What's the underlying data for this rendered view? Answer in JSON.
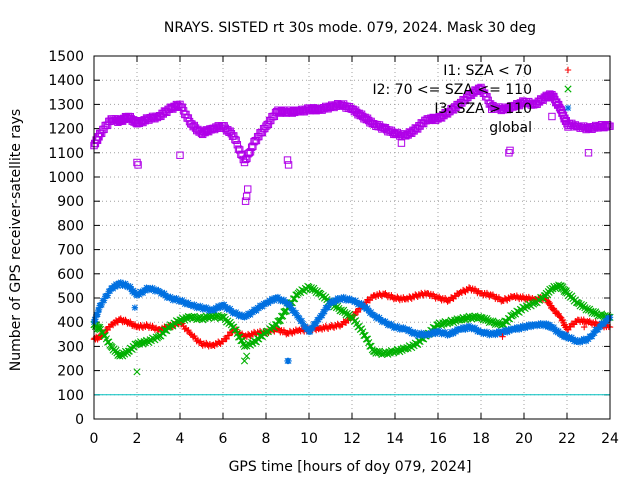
{
  "chart_data": {
    "type": "scatter",
    "title": "NRAYS. SISTED rt 30s mode. 079, 2024. Mask 30 deg",
    "xlabel": "GPS time [hours of doy 079, 2024]",
    "ylabel": "Number of GPS receiver-satellite rays",
    "xlim": [
      0,
      24
    ],
    "ylim": [
      0,
      1500
    ],
    "xticks": [
      0,
      2,
      4,
      6,
      8,
      10,
      12,
      14,
      16,
      18,
      20,
      22,
      24
    ],
    "yticks": [
      0,
      100,
      200,
      300,
      400,
      500,
      600,
      700,
      800,
      900,
      1000,
      1100,
      1200,
      1300,
      1400,
      1500
    ],
    "grid": true,
    "legend_position": "top-right",
    "threshold_line": {
      "y": 100,
      "color": "#00c0c0"
    },
    "series": [
      {
        "name": "I1: SZA < 70",
        "marker": "+",
        "color": "#ff0000",
        "x": [
          0,
          0.3,
          0.8,
          1.2,
          1.6,
          2.0,
          2.5,
          3.0,
          3.5,
          4.0,
          4.5,
          5.0,
          5.5,
          6.0,
          6.5,
          7.0,
          7.5,
          8.0,
          8.5,
          9.0,
          9.5,
          10.0,
          10.5,
          11.0,
          11.5,
          12.0,
          12.5,
          13.0,
          13.5,
          14.0,
          14.5,
          15.0,
          15.5,
          16.0,
          16.5,
          17.0,
          17.5,
          18.0,
          18.5,
          19.0,
          19.5,
          20.0,
          20.5,
          21.0,
          21.3,
          21.7,
          22.0,
          22.5,
          23.0,
          23.5,
          24.0
        ],
        "y": [
          330,
          340,
          390,
          410,
          400,
          380,
          385,
          370,
          380,
          400,
          350,
          310,
          305,
          320,
          370,
          340,
          355,
          360,
          370,
          355,
          365,
          370,
          375,
          380,
          390,
          420,
          470,
          510,
          515,
          500,
          495,
          510,
          520,
          500,
          490,
          520,
          540,
          520,
          510,
          490,
          505,
          500,
          495,
          500,
          460,
          420,
          370,
          410,
          400,
          390,
          380
        ]
      },
      {
        "name": "I2: 70 <= SZA <= 110",
        "marker": "x",
        "color": "#00b000",
        "x": [
          0,
          0.3,
          0.8,
          1.2,
          1.6,
          2.0,
          2.5,
          3.0,
          3.5,
          4.0,
          4.5,
          5.0,
          5.5,
          6.0,
          6.5,
          7.0,
          7.5,
          8.0,
          8.5,
          9.0,
          9.5,
          10.0,
          10.5,
          11.0,
          11.5,
          12.0,
          12.5,
          13.0,
          13.5,
          14.0,
          14.5,
          15.0,
          15.5,
          16.0,
          16.5,
          17.0,
          17.5,
          18.0,
          18.5,
          19.0,
          19.5,
          20.0,
          20.5,
          21.0,
          21.3,
          21.7,
          22.0,
          22.5,
          23.0,
          23.5,
          24.0
        ],
        "y": [
          390,
          370,
          300,
          260,
          280,
          310,
          320,
          340,
          380,
          410,
          420,
          415,
          425,
          420,
          380,
          300,
          320,
          360,
          390,
          460,
          520,
          545,
          520,
          480,
          450,
          420,
          360,
          280,
          270,
          280,
          290,
          310,
          350,
          390,
          400,
          410,
          420,
          420,
          400,
          390,
          430,
          460,
          480,
          510,
          540,
          550,
          520,
          480,
          450,
          430,
          420
        ]
      },
      {
        "name": "I3: SZA > 110",
        "marker": "*",
        "color": "#0070e0",
        "x": [
          0,
          0.3,
          0.8,
          1.2,
          1.6,
          2.0,
          2.5,
          3.0,
          3.5,
          4.0,
          4.5,
          5.0,
          5.5,
          6.0,
          6.5,
          7.0,
          7.5,
          8.0,
          8.5,
          9.0,
          9.5,
          10.0,
          10.5,
          11.0,
          11.5,
          12.0,
          12.5,
          13.0,
          13.5,
          14.0,
          14.5,
          15.0,
          15.5,
          16.0,
          16.5,
          17.0,
          17.5,
          18.0,
          18.5,
          19.0,
          19.5,
          20.0,
          20.5,
          21.0,
          21.3,
          21.7,
          22.0,
          22.5,
          23.0,
          23.5,
          24.0
        ],
        "y": [
          400,
          470,
          540,
          560,
          550,
          510,
          540,
          530,
          500,
          490,
          470,
          460,
          450,
          470,
          440,
          420,
          450,
          480,
          500,
          480,
          420,
          360,
          420,
          480,
          500,
          490,
          470,
          430,
          400,
          380,
          370,
          350,
          350,
          360,
          350,
          370,
          380,
          360,
          350,
          360,
          370,
          380,
          390,
          390,
          380,
          350,
          340,
          320,
          330,
          380,
          420
        ]
      },
      {
        "name": "global",
        "marker": "square",
        "color": "#b000e8",
        "x": [
          0,
          0.3,
          0.8,
          1.2,
          1.6,
          2.0,
          2.5,
          3.0,
          3.5,
          4.0,
          4.5,
          5.0,
          5.5,
          6.0,
          6.5,
          7.0,
          7.5,
          8.0,
          8.5,
          9.0,
          9.5,
          10.0,
          10.5,
          11.0,
          11.5,
          12.0,
          12.5,
          13.0,
          13.5,
          14.0,
          14.5,
          15.0,
          15.5,
          16.0,
          16.5,
          17.0,
          17.5,
          18.0,
          18.5,
          19.0,
          19.5,
          20.0,
          20.5,
          21.0,
          21.3,
          21.7,
          22.0,
          22.5,
          23.0,
          23.5,
          24.0
        ],
        "y": [
          1130,
          1180,
          1240,
          1230,
          1250,
          1220,
          1240,
          1250,
          1280,
          1300,
          1220,
          1180,
          1200,
          1210,
          1170,
          1060,
          1150,
          1210,
          1270,
          1270,
          1270,
          1280,
          1280,
          1290,
          1300,
          1280,
          1250,
          1220,
          1200,
          1180,
          1170,
          1200,
          1240,
          1240,
          1270,
          1300,
          1340,
          1370,
          1290,
          1280,
          1290,
          1310,
          1300,
          1330,
          1340,
          1280,
          1220,
          1210,
          1200,
          1210,
          1210
        ]
      }
    ],
    "outliers": [
      {
        "series": "global",
        "points": [
          [
            2.0,
            1060
          ],
          [
            2.05,
            1050
          ],
          [
            4.0,
            1090
          ],
          [
            7.05,
            900
          ],
          [
            7.1,
            920
          ],
          [
            7.15,
            950
          ],
          [
            9.0,
            1070
          ],
          [
            9.05,
            1050
          ],
          [
            14.3,
            1140
          ],
          [
            18.5,
            1280
          ],
          [
            19.3,
            1100
          ],
          [
            19.35,
            1110
          ],
          [
            21.3,
            1250
          ],
          [
            23.0,
            1100
          ]
        ]
      },
      {
        "series": "I2: 70 <= SZA <= 110",
        "points": [
          [
            2.0,
            195
          ],
          [
            7.0,
            240
          ],
          [
            7.1,
            260
          ]
        ]
      },
      {
        "series": "I3: SZA > 110",
        "points": [
          [
            9.0,
            240
          ],
          [
            9.05,
            240
          ],
          [
            1.9,
            460
          ]
        ]
      },
      {
        "series": "I1: SZA < 70",
        "points": [
          [
            19.0,
            340
          ],
          [
            22.8,
            380
          ]
        ]
      }
    ]
  }
}
